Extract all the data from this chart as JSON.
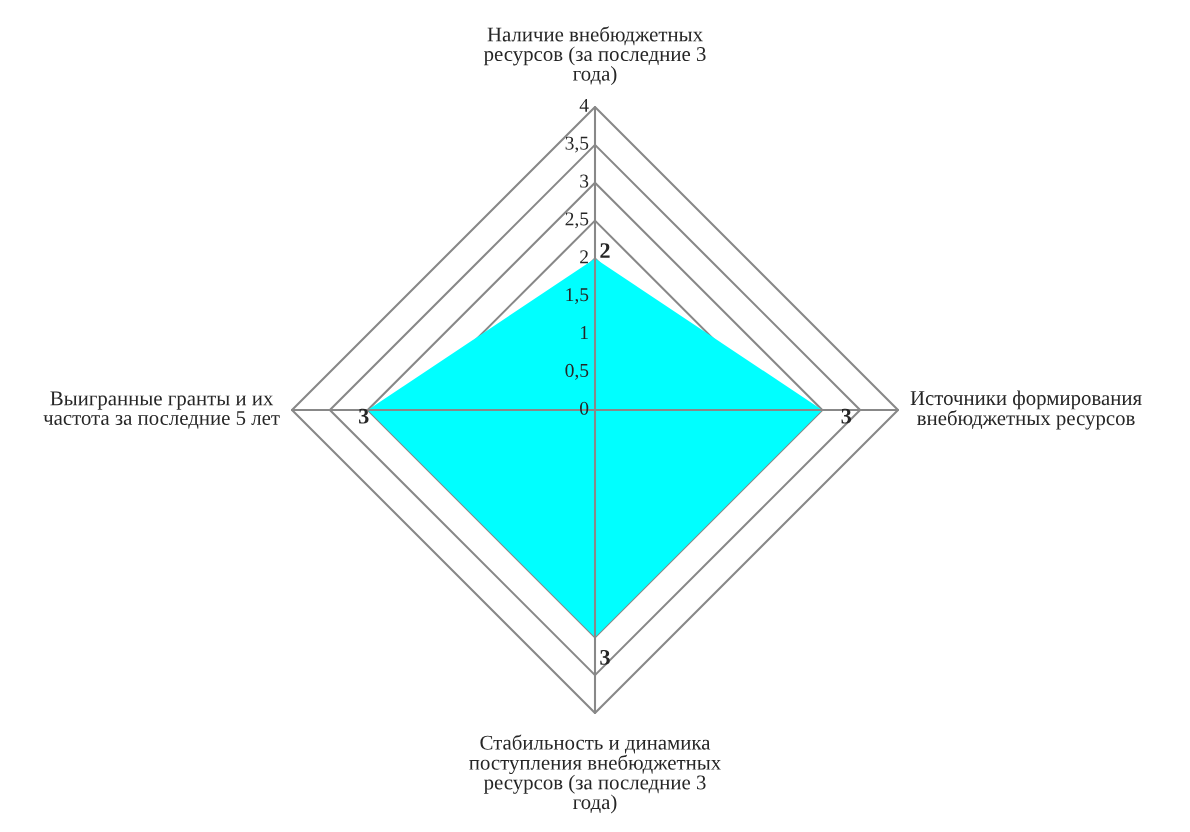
{
  "chart_data": {
    "type": "radar",
    "categories": [
      "Наличие внебюджетных\nресурсов (за последние 3\nгода)",
      "Источники формирования\nвнебюджетных ресурсов",
      "Стабильность и динамика\nпоступления внебюджетных\nресурсов (за последние 3\nгода)",
      "Выигранные гранты и их\nчастота за последние 5 лет"
    ],
    "series": [
      {
        "color": "#00ffff",
        "values": [
          2,
          3,
          3,
          3
        ]
      }
    ],
    "ylim": [
      0,
      4
    ],
    "yticks": [
      0,
      {
        "value": 0.5,
        "label": "0,5"
      },
      1,
      {
        "value": 1.5,
        "label": "1,5"
      },
      2,
      {
        "value": 2.5,
        "label": "2,5"
      },
      3,
      {
        "value": 3.5,
        "label": "3,5"
      },
      4
    ],
    "data_labels": true,
    "legend": false
  }
}
